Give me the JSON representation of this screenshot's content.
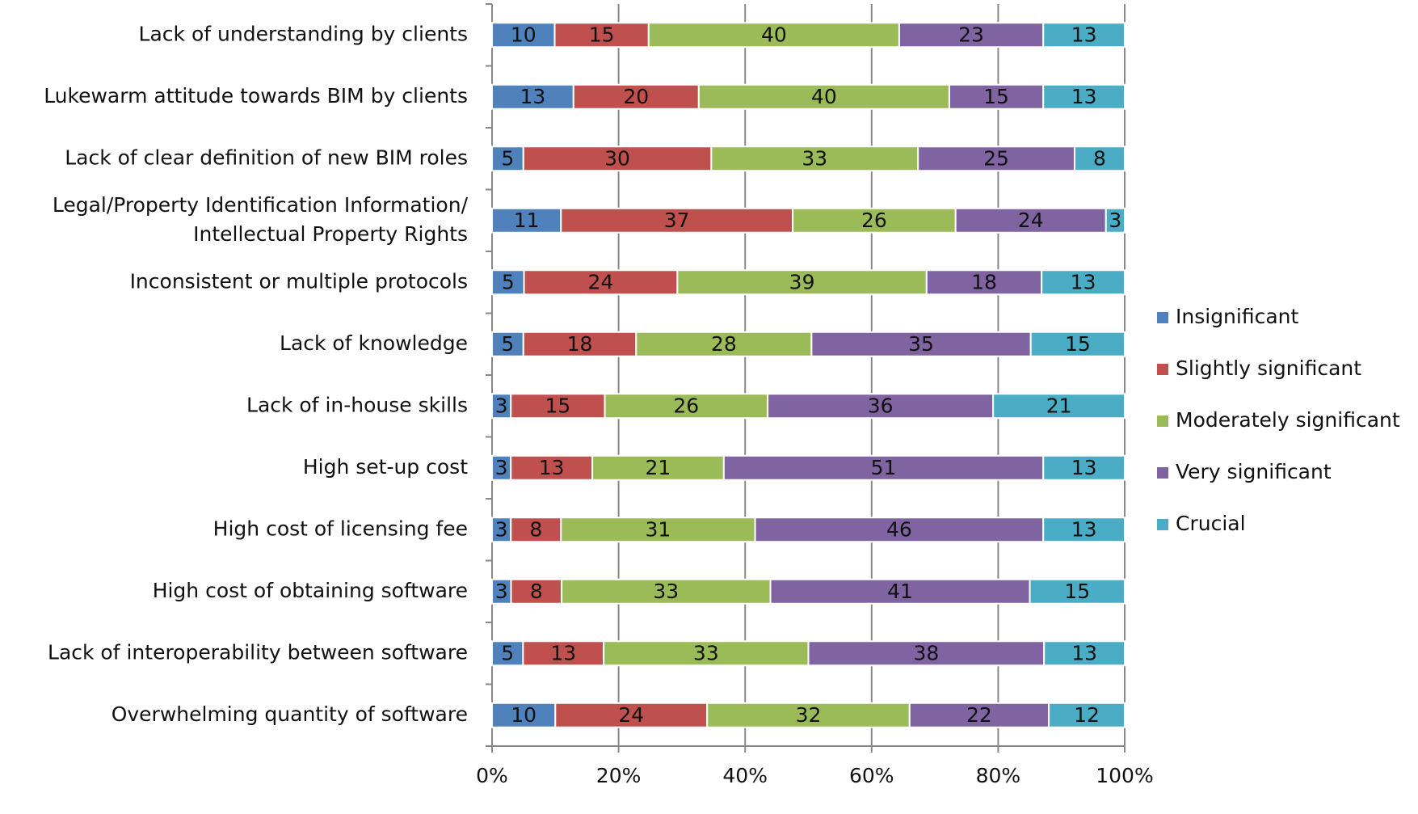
{
  "chart_data": {
    "type": "bar",
    "orientation": "horizontal",
    "stack": "percent",
    "categories": [
      "Lack of understanding by clients",
      "Lukewarm attitude towards BIM by clients",
      "Lack of clear definition of new BIM roles",
      "Legal/Property Identification Information/\nIntellectual Property Rights",
      "Inconsistent or multiple protocols",
      "Lack of knowledge",
      "Lack of in-house skills",
      "High set-up cost",
      "High cost of licensing fee",
      "High cost of obtaining software",
      "Lack of interoperability between software",
      "Overwhelming quantity of software"
    ],
    "series": [
      {
        "name": "Insignificant",
        "color": "#4f81bd",
        "values": [
          10,
          13,
          5,
          11,
          5,
          5,
          3,
          3,
          3,
          3,
          5,
          10
        ]
      },
      {
        "name": "Slightly significant",
        "color": "#c0504d",
        "values": [
          15,
          20,
          30,
          37,
          24,
          18,
          15,
          13,
          8,
          8,
          13,
          24
        ]
      },
      {
        "name": "Moderately significant",
        "color": "#9bbb59",
        "values": [
          40,
          40,
          33,
          26,
          39,
          28,
          26,
          21,
          31,
          33,
          33,
          32
        ]
      },
      {
        "name": "Very significant",
        "color": "#8064a2",
        "values": [
          23,
          15,
          25,
          24,
          18,
          35,
          36,
          51,
          46,
          41,
          38,
          22
        ]
      },
      {
        "name": "Crucial",
        "color": "#4bacc6",
        "values": [
          13,
          13,
          8,
          3,
          13,
          15,
          21,
          13,
          13,
          15,
          13,
          12
        ]
      }
    ],
    "xlim": [
      0,
      100
    ],
    "xticks": [
      {
        "value": 0,
        "label": "0%"
      },
      {
        "value": 20,
        "label": "20%"
      },
      {
        "value": 40,
        "label": "40%"
      },
      {
        "value": 60,
        "label": "60%"
      },
      {
        "value": 80,
        "label": "80%"
      },
      {
        "value": 100,
        "label": "100%"
      }
    ],
    "grid": true,
    "legend": "right"
  }
}
